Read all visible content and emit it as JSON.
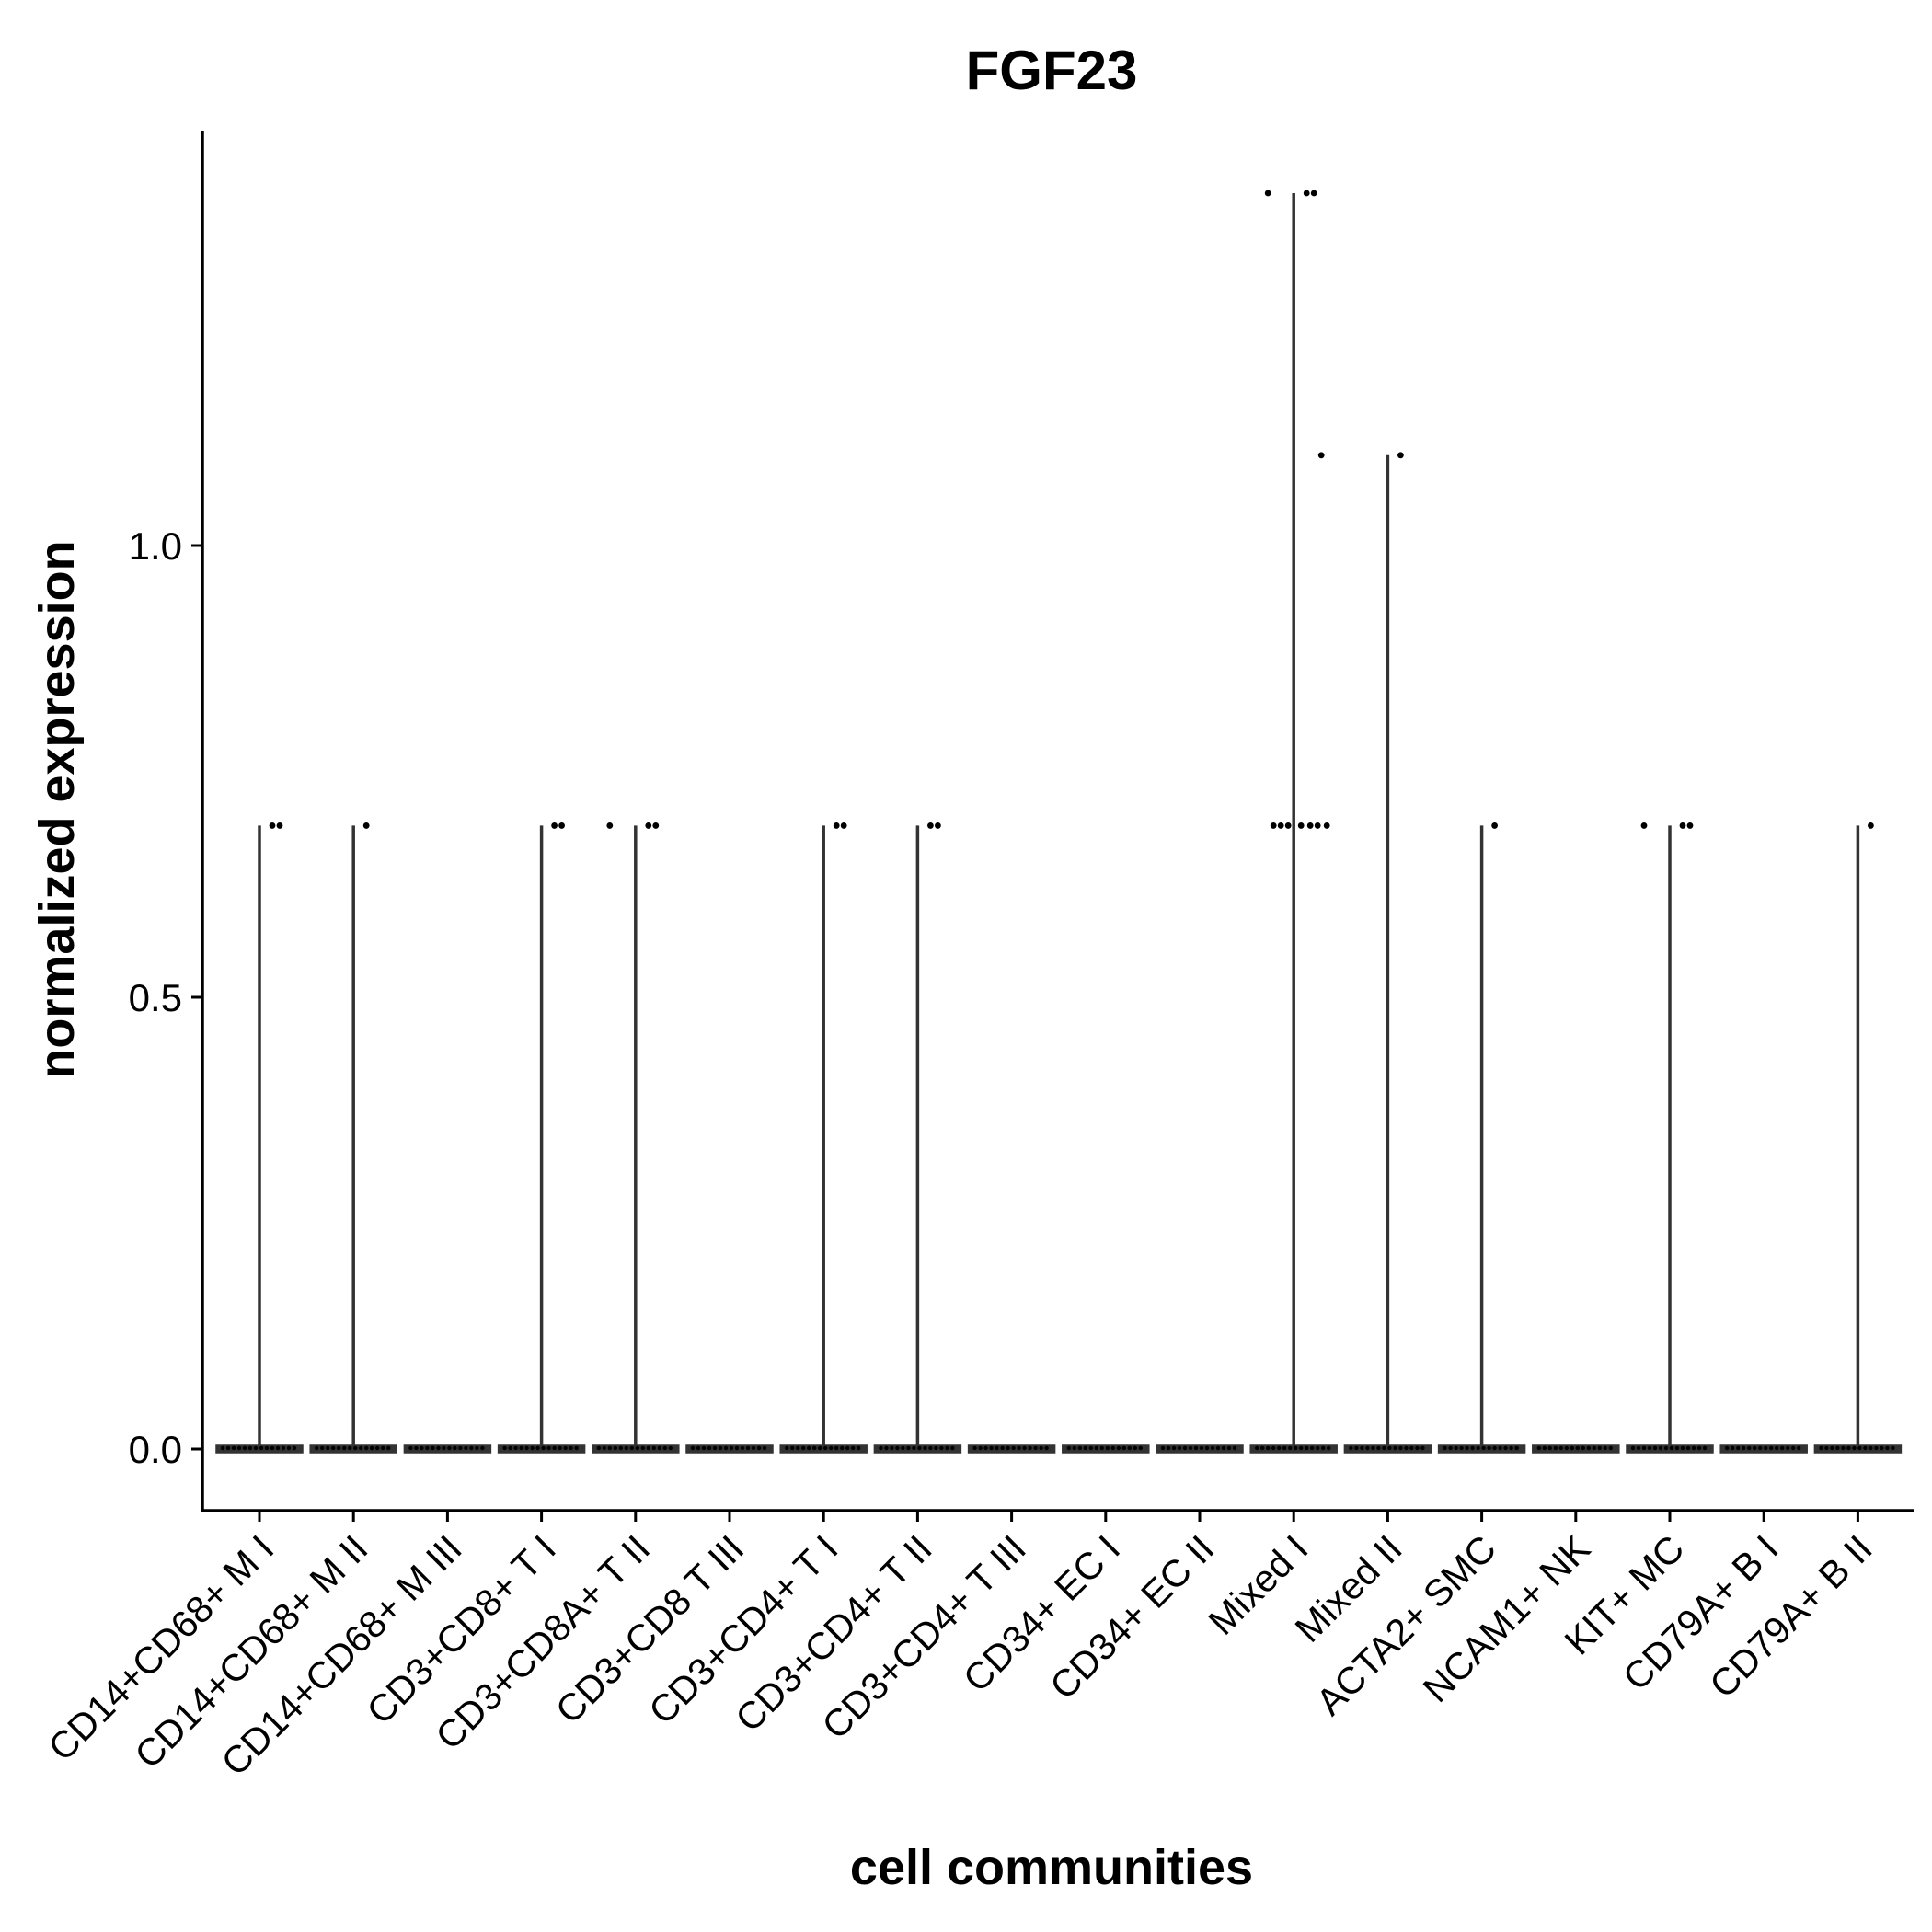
{
  "chart_data": {
    "type": "violin",
    "title": "FGF23",
    "xlabel": "cell communities",
    "ylabel": "normalized expression",
    "ylim": [
      -0.07,
      1.46
    ],
    "yticks": [
      0.0,
      0.5,
      1.0
    ],
    "ytick_labels": [
      "0.0",
      "0.5",
      "1.0"
    ],
    "grid": false,
    "legend": "none",
    "categories": [
      "CD14+CD68+ M I",
      "CD14+CD68+ M II",
      "CD14+CD68+ M III",
      "CD3+CD8+ T I",
      "CD3+CD8A+ T II",
      "CD3+CD8 T III",
      "CD3+CD4+ T I",
      "CD3+CD4+ T II",
      "CD3+CD4+ T III",
      "CD34+ EC I",
      "CD34+ EC II",
      "Mixed I",
      "Mixed II",
      "ACTA2+ SMC",
      "NCAM1+ NK",
      "KIT+ MC",
      "CD79A+ B I",
      "CD79A+ B II"
    ],
    "max_values": [
      0.69,
      0.69,
      0.0,
      0.69,
      0.69,
      0.0,
      0.69,
      0.69,
      0.0,
      0.0,
      0.0,
      1.39,
      1.1,
      0.69,
      0.0,
      0.69,
      0.0,
      0.69
    ],
    "nonzero_points": [
      [
        0.69,
        0.69
      ],
      [
        0.69
      ],
      [],
      [
        0.69,
        0.69
      ],
      [
        0.69,
        0.69,
        0.69
      ],
      [],
      [
        0.69,
        0.69
      ],
      [
        0.69,
        0.69
      ],
      [],
      [],
      [],
      [
        1.39,
        1.39,
        1.39,
        1.1,
        0.69,
        0.69,
        0.69,
        0.69,
        0.69,
        0.69,
        0.69
      ],
      [
        1.1
      ],
      [
        0.69
      ],
      [],
      [
        0.69,
        0.69,
        0.69
      ],
      [],
      [
        0.69
      ]
    ],
    "colors": {
      "violin": "#333333",
      "points": "#000000"
    }
  }
}
